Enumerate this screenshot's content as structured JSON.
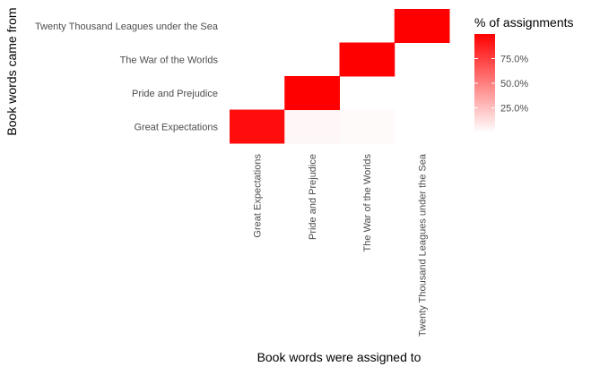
{
  "chart_data": {
    "type": "heatmap",
    "title": "",
    "xlabel": "Book words were assigned to",
    "ylabel": "Book words came from",
    "x_categories": [
      "Great Expectations",
      "Pride and Prejudice",
      "The War of the Worlds",
      "Twenty Thousand Leagues under the Sea"
    ],
    "y_categories": [
      "Great Expectations",
      "Pride and Prejudice",
      "The War of the Worlds",
      "Twenty Thousand Leagues under the Sea"
    ],
    "cells": [
      {
        "x": "Great Expectations",
        "y": "Great Expectations",
        "value": 0.95
      },
      {
        "x": "Pride and Prejudice",
        "y": "Great Expectations",
        "value": 0.03
      },
      {
        "x": "The War of the Worlds",
        "y": "Great Expectations",
        "value": 0.02
      },
      {
        "x": "Pride and Prejudice",
        "y": "Pride and Prejudice",
        "value": 1.0
      },
      {
        "x": "The War of the Worlds",
        "y": "The War of the Worlds",
        "value": 1.0
      },
      {
        "x": "Twenty Thousand Leagues under the Sea",
        "y": "Twenty Thousand Leagues under the Sea",
        "value": 1.0
      }
    ],
    "legend": {
      "title": "% of assignments",
      "position": "right",
      "breaks": [
        0.25,
        0.5,
        0.75
      ],
      "labels": [
        "25.0%",
        "50.0%",
        "75.0%"
      ],
      "range": [
        0,
        1
      ],
      "low_color": "#ffffff",
      "high_color": "#ff0000"
    },
    "grid": false
  }
}
